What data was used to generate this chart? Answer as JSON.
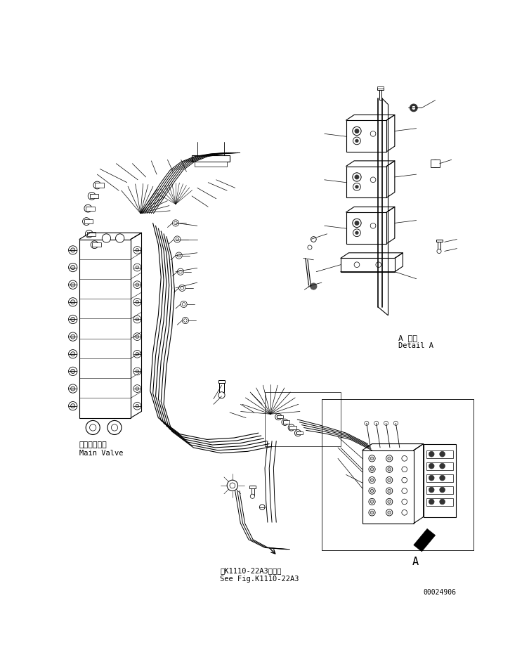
{
  "bg_color": "#ffffff",
  "line_color": "#000000",
  "fig_width": 7.53,
  "fig_height": 9.53,
  "dpi": 100,
  "bottom_left_text1": "メインバルブ",
  "bottom_left_text2": "Main Valve",
  "detail_text1": "A 詳細",
  "detail_text2": "Detail A",
  "bottom_ref_text1": "第K1110-22A3図参照",
  "bottom_ref_text2": "See Fig.K1110-22A3",
  "bottom_right_text": "00024906",
  "arrow_A_label": "A"
}
